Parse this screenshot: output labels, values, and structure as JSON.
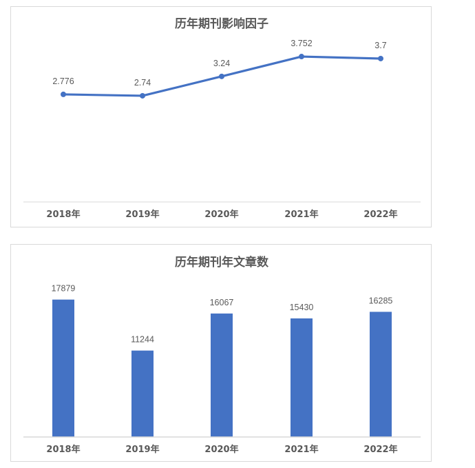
{
  "chart_data": [
    {
      "type": "line",
      "title": "历年期刊影响因子",
      "categories": [
        "2018年",
        "2019年",
        "2020年",
        "2021年",
        "2022年"
      ],
      "values": [
        2.776,
        2.74,
        3.24,
        3.752,
        3.7
      ],
      "data_labels": [
        "2.776",
        "2.74",
        "3.24",
        "3.752",
        "3.7"
      ],
      "xlabel": "",
      "ylabel": "",
      "ylim": [
        0,
        4.5
      ],
      "grid": false,
      "color": "#4472C4"
    },
    {
      "type": "bar",
      "title": "历年期刊年文章数",
      "categories": [
        "2018年",
        "2019年",
        "2020年",
        "2021年",
        "2022年"
      ],
      "values": [
        17879,
        11244,
        16067,
        15430,
        16285
      ],
      "data_labels": [
        "17879",
        "11244",
        "16067",
        "15430",
        "16285"
      ],
      "xlabel": "",
      "ylabel": "",
      "ylim": [
        0,
        20000
      ],
      "grid": false,
      "color": "#4472C4"
    }
  ]
}
